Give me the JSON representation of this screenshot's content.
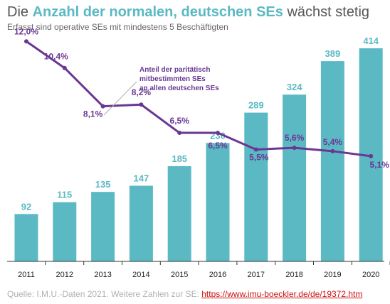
{
  "title": {
    "prefix": "Die",
    "highlight": "Anzahl der normalen, deutschen SEs",
    "suffix": "wächst stetig"
  },
  "subtitle": "Erfasst sind operative SEs mit mindestens 5 Beschäftigten",
  "footer": {
    "source": "Quelle: I.M.U.-Daten 2021. Weitere Zahlen zur SE: ",
    "link": "https://www.imu-boeckler.de/de/19372.htm"
  },
  "colors": {
    "bar": "#5bb9c4",
    "line": "#6a3793",
    "axis": "#333333"
  },
  "chart_data": {
    "type": "bar",
    "categories": [
      "2011",
      "2012",
      "2013",
      "2014",
      "2015",
      "2016",
      "2017",
      "2018",
      "2019",
      "2020"
    ],
    "series": [
      {
        "type": "bar",
        "values": [
          92,
          115,
          135,
          147,
          185,
          230,
          289,
          324,
          389,
          414
        ],
        "labels": [
          "92",
          "115",
          "135",
          "147",
          "185",
          "230",
          "289",
          "324",
          "389",
          "414"
        ]
      },
      {
        "type": "line",
        "name": "Anteil der paritätisch mitbestimmten SEs an allen deutschen SEs",
        "values": [
          12.0,
          10.4,
          8.1,
          8.2,
          6.5,
          6.5,
          5.5,
          5.6,
          5.4,
          5.1
        ],
        "labels": [
          "12,0%",
          "10,4%",
          "8,1%",
          "8,2%",
          "6,5%",
          "6,5%",
          "5,5%",
          "5,6%",
          "5,4%",
          "5,1%"
        ]
      }
    ],
    "annotation_lines": [
      "Anteil der paritätisch",
      "mitbestimmten SEs",
      "an allen deutschen SEs"
    ],
    "ylim_bar": [
      0,
      450
    ],
    "ylim_line": [
      0,
      13
    ]
  }
}
